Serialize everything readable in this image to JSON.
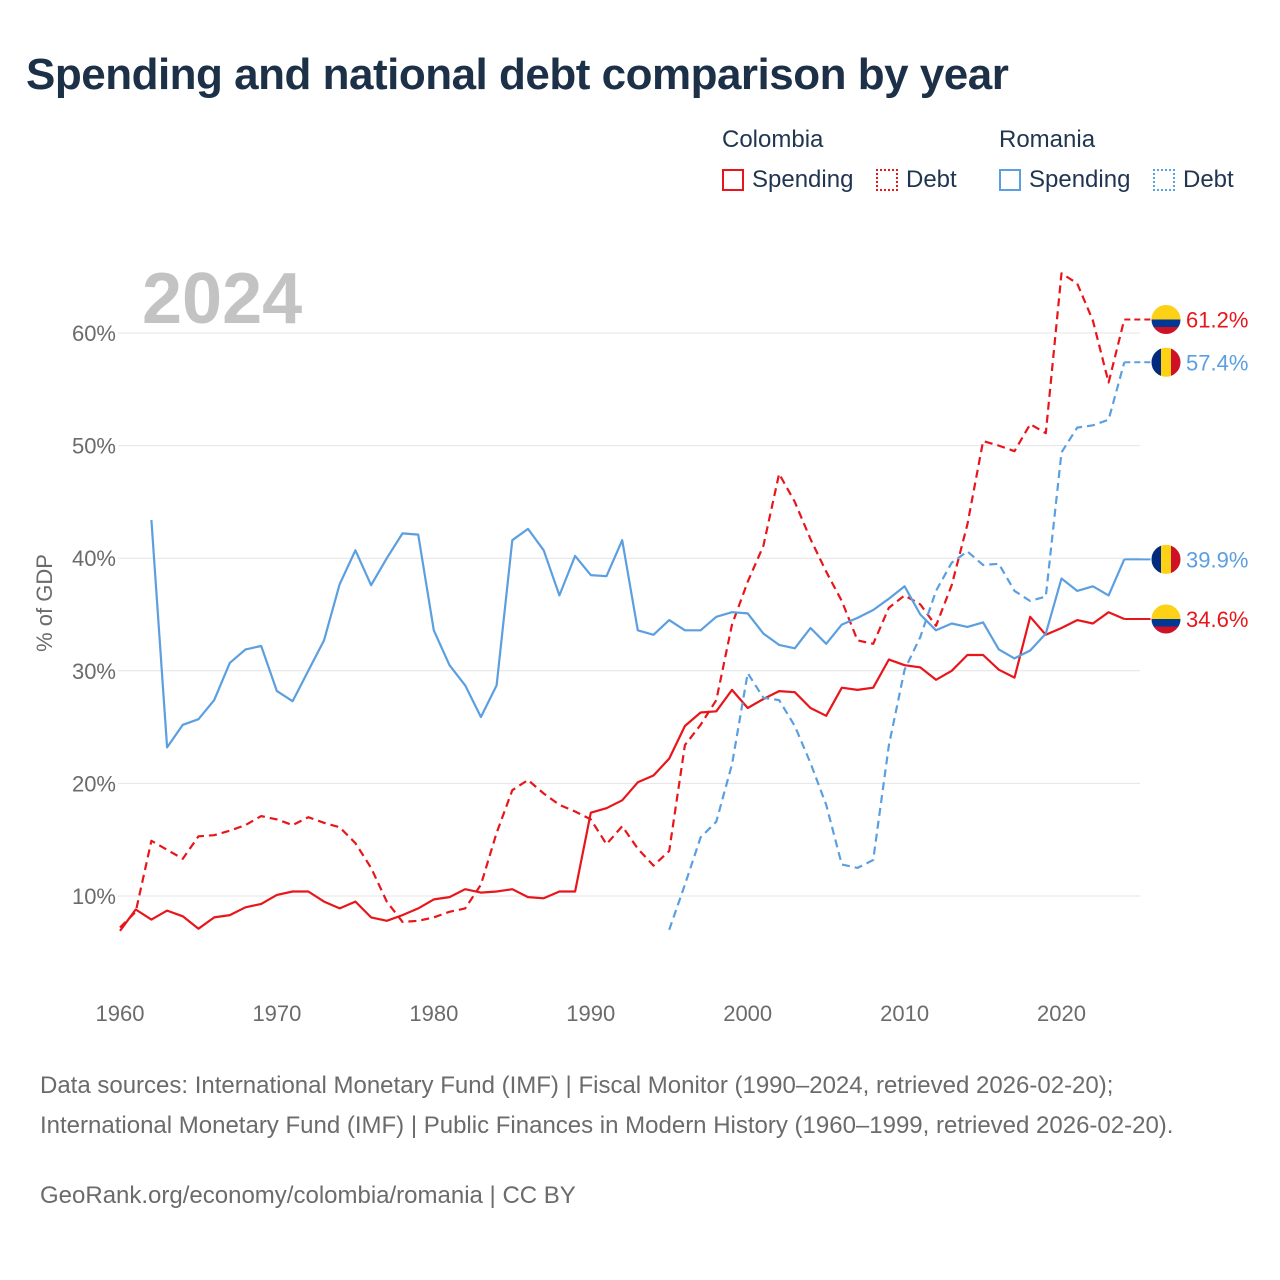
{
  "title": "Spending and national debt comparison by year",
  "legend": {
    "groups": [
      {
        "name": "Colombia",
        "color": "#e8151b",
        "items": [
          {
            "label": "Spending",
            "style": "solid"
          },
          {
            "label": "Debt",
            "style": "dashed"
          }
        ]
      },
      {
        "name": "Romania",
        "color": "#5b9fe0",
        "items": [
          {
            "label": "Spending",
            "style": "solid"
          },
          {
            "label": "Debt",
            "style": "dashed"
          }
        ]
      }
    ]
  },
  "chart_data": {
    "type": "line",
    "year_label": "2024",
    "ylabel": "% of GDP",
    "xlim": [
      1960,
      2025
    ],
    "ylim": [
      3,
      67
    ],
    "x_ticks": [
      1960,
      1970,
      1980,
      1990,
      2000,
      2010,
      2020
    ],
    "x_tick_labels": [
      "1960",
      "1970",
      "1980",
      "1990",
      "2000",
      "2010",
      "2020"
    ],
    "y_ticks": [
      10,
      20,
      30,
      40,
      50,
      60
    ],
    "y_tick_labels": [
      "10%",
      "20%",
      "30%",
      "40%",
      "50%",
      "60%"
    ],
    "series": [
      {
        "name": "Colombia Spending",
        "country": "Colombia",
        "color": "#e8151b",
        "dashed": false,
        "x_start": 1960,
        "end_label": "34.6%",
        "values": [
          6.9,
          8.8,
          7.9,
          8.7,
          8.2,
          7.1,
          8.1,
          8.3,
          9.0,
          9.3,
          10.1,
          10.4,
          10.4,
          9.5,
          8.9,
          9.5,
          8.1,
          7.8,
          8.3,
          8.9,
          9.7,
          9.9,
          10.6,
          10.3,
          10.4,
          10.6,
          9.9,
          9.8,
          10.4,
          10.4,
          17.4,
          17.8,
          18.5,
          20.1,
          20.7,
          22.2,
          25.1,
          26.3,
          26.4,
          28.3,
          26.7,
          27.5,
          28.2,
          28.1,
          26.7,
          26.0,
          28.5,
          28.3,
          28.5,
          31.0,
          30.5,
          30.3,
          29.2,
          30.0,
          31.4,
          31.4,
          30.1,
          29.4,
          34.8,
          33.2,
          33.8,
          34.5,
          34.2,
          35.2,
          34.6
        ]
      },
      {
        "name": "Colombia Debt",
        "country": "Colombia",
        "color": "#e8151b",
        "dashed": true,
        "x_start": 1960,
        "end_label": "61.2%",
        "values": [
          7.2,
          8.6,
          14.9,
          14.1,
          13.3,
          15.3,
          15.4,
          15.8,
          16.3,
          17.1,
          16.8,
          16.3,
          17.0,
          16.5,
          16.1,
          14.7,
          12.5,
          9.5,
          7.7,
          7.8,
          8.1,
          8.6,
          8.9,
          11.0,
          15.6,
          19.4,
          20.3,
          19.1,
          18.1,
          17.5,
          16.8,
          14.6,
          16.2,
          14.2,
          12.7,
          14.0,
          23.4,
          25.2,
          27.4,
          34.1,
          37.9,
          41.1,
          47.5,
          45.0,
          41.7,
          38.8,
          36.2,
          32.7,
          32.4,
          35.6,
          36.7,
          35.9,
          34.0,
          37.6,
          43.0,
          50.4,
          50.0,
          49.5,
          51.9,
          51.1,
          65.3,
          64.4,
          61.1,
          55.6,
          61.2
        ]
      },
      {
        "name": "Romania Spending",
        "country": "Romania",
        "color": "#5b9fe0",
        "dashed": false,
        "x_start": 1962,
        "end_label": "39.9%",
        "values": [
          43.4,
          23.2,
          25.2,
          25.7,
          27.4,
          30.7,
          31.9,
          32.2,
          28.2,
          27.3,
          30.0,
          32.7,
          37.7,
          40.7,
          37.6,
          40.0,
          42.2,
          42.1,
          33.6,
          30.5,
          28.7,
          25.9,
          28.7,
          41.6,
          42.6,
          40.7,
          36.7,
          40.2,
          38.5,
          38.4,
          41.6,
          33.6,
          33.2,
          34.5,
          33.6,
          33.6,
          34.8,
          35.2,
          35.1,
          33.3,
          32.3,
          32.0,
          33.8,
          32.4,
          34.1,
          34.7,
          35.4,
          36.4,
          37.5,
          35.0,
          33.6,
          34.2,
          33.9,
          34.3,
          31.9,
          31.1,
          31.8,
          33.3,
          38.2,
          37.1,
          37.5,
          36.7,
          39.9
        ]
      },
      {
        "name": "Romania Debt",
        "country": "Romania",
        "color": "#5b9fe0",
        "dashed": true,
        "x_start": 1995,
        "end_label": "57.4%",
        "values": [
          7.0,
          11.0,
          15.2,
          16.6,
          21.7,
          29.8,
          27.6,
          27.4,
          25.1,
          21.8,
          18.1,
          12.8,
          12.5,
          13.2,
          23.4,
          30.1,
          33.0,
          37.1,
          39.6,
          40.6,
          39.4,
          39.5,
          37.1,
          36.2,
          36.6,
          49.4,
          51.6,
          51.8,
          52.3,
          57.4
        ]
      }
    ]
  },
  "footer": {
    "sources": "Data sources: International Monetary Fund (IMF) | Fiscal Monitor (1990–2024, retrieved 2026-02-20); International Monetary Fund (IMF) | Public Finances in Modern History (1960–1999, retrieved 2026-02-20).",
    "attribution": "GeoRank.org/economy/colombia/romania | CC BY"
  }
}
